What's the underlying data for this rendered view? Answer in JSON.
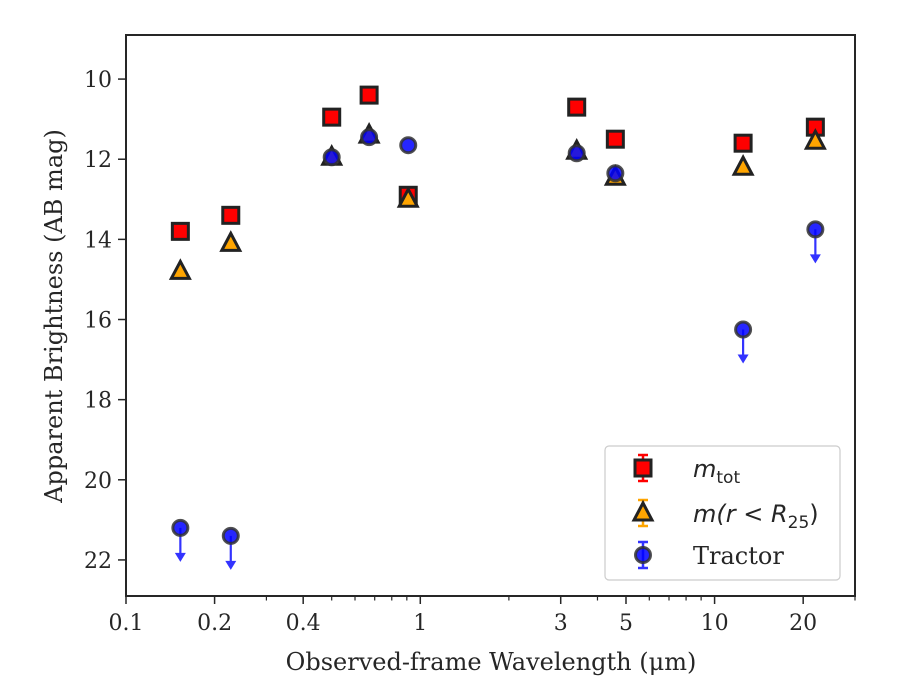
{
  "chart_data": {
    "type": "scatter",
    "title": "",
    "xlabel": "Observed-frame Wavelength (μm)",
    "ylabel": "Apparent Brightness (AB mag)",
    "xscale": "log",
    "xlim": [
      0.1,
      30
    ],
    "ylim": [
      22.9,
      8.9
    ],
    "y_inverted": true,
    "grid": false,
    "legend_position": "lower-right",
    "x_ticks": [
      {
        "value": 0.1,
        "label": "0.1"
      },
      {
        "value": 0.2,
        "label": "0.2"
      },
      {
        "value": 0.4,
        "label": "0.4"
      },
      {
        "value": 1,
        "label": "1"
      },
      {
        "value": 3,
        "label": "3"
      },
      {
        "value": 5,
        "label": "5"
      },
      {
        "value": 10,
        "label": "10"
      },
      {
        "value": 20,
        "label": "20"
      }
    ],
    "y_ticks": [
      {
        "value": 10,
        "label": "10"
      },
      {
        "value": 12,
        "label": "12"
      },
      {
        "value": 14,
        "label": "14"
      },
      {
        "value": 16,
        "label": "16"
      },
      {
        "value": 18,
        "label": "18"
      },
      {
        "value": 20,
        "label": "20"
      },
      {
        "value": 22,
        "label": "22"
      }
    ],
    "series": [
      {
        "name": "m_tot",
        "legend_main": "m",
        "legend_sub": "tot",
        "marker": "square",
        "face_color": "#ff0000",
        "edge_color": "#222222",
        "errorbar_color": "#ff0000",
        "points": [
          {
            "x": 0.153,
            "y": 13.8,
            "upper_limit": false
          },
          {
            "x": 0.227,
            "y": 13.4,
            "upper_limit": false
          },
          {
            "x": 0.5,
            "y": 10.95,
            "upper_limit": false
          },
          {
            "x": 0.67,
            "y": 10.4,
            "upper_limit": false
          },
          {
            "x": 0.91,
            "y": 12.9,
            "upper_limit": false
          },
          {
            "x": 3.4,
            "y": 10.7,
            "upper_limit": false
          },
          {
            "x": 4.6,
            "y": 11.5,
            "upper_limit": false
          },
          {
            "x": 12.5,
            "y": 11.6,
            "upper_limit": false
          },
          {
            "x": 22.0,
            "y": 11.2,
            "upper_limit": false
          }
        ]
      },
      {
        "name": "m(r<R25)",
        "legend_main": "m(r < R",
        "legend_sub": "25",
        "legend_tail": ")",
        "marker": "triangle",
        "face_color": "#ffa500",
        "edge_color": "#222222",
        "errorbar_color": "#ffa500",
        "points": [
          {
            "x": 0.153,
            "y": 14.8,
            "upper_limit": false
          },
          {
            "x": 0.227,
            "y": 14.1,
            "upper_limit": false
          },
          {
            "x": 0.5,
            "y": 11.95,
            "upper_limit": false
          },
          {
            "x": 0.67,
            "y": 11.4,
            "upper_limit": false
          },
          {
            "x": 0.91,
            "y": 13.0,
            "upper_limit": false
          },
          {
            "x": 3.4,
            "y": 11.8,
            "upper_limit": false
          },
          {
            "x": 4.6,
            "y": 12.45,
            "upper_limit": false
          },
          {
            "x": 12.5,
            "y": 12.2,
            "upper_limit": false
          },
          {
            "x": 22.0,
            "y": 11.55,
            "upper_limit": false
          }
        ]
      },
      {
        "name": "Tractor",
        "legend_main": "Tractor",
        "marker": "circle",
        "face_color": "#0000ff",
        "edge_color": "#333333",
        "errorbar_color": "#3333ff",
        "points": [
          {
            "x": 0.153,
            "y": 21.2,
            "upper_limit": true
          },
          {
            "x": 0.227,
            "y": 21.4,
            "upper_limit": true
          },
          {
            "x": 0.5,
            "y": 11.95,
            "upper_limit": false
          },
          {
            "x": 0.67,
            "y": 11.45,
            "upper_limit": false
          },
          {
            "x": 0.91,
            "y": 11.65,
            "upper_limit": false
          },
          {
            "x": 3.4,
            "y": 11.85,
            "upper_limit": false
          },
          {
            "x": 4.6,
            "y": 12.35,
            "upper_limit": false
          },
          {
            "x": 12.5,
            "y": 16.25,
            "upper_limit": true
          },
          {
            "x": 22.0,
            "y": 13.75,
            "upper_limit": true
          }
        ]
      }
    ]
  }
}
